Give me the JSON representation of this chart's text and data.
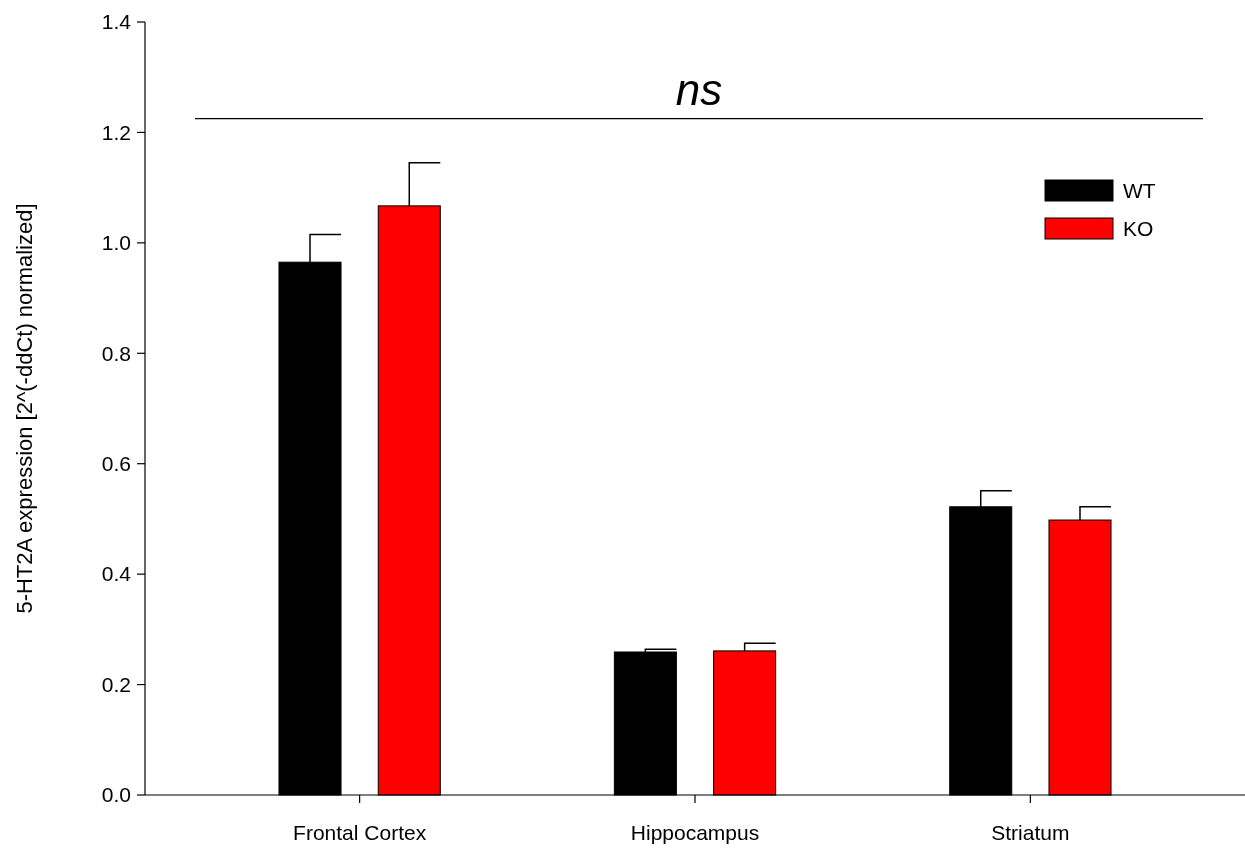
{
  "chart_data": {
    "type": "bar",
    "ylabel": "5-HT2A expression [2^(-ddCt) normalized]",
    "categories": [
      "Frontal Cortex",
      "Hippocampus",
      "Striatum"
    ],
    "series": [
      {
        "name": "WT",
        "color": "#000000",
        "values": [
          0.965,
          0.259,
          0.522
        ],
        "errors": [
          0.05,
          0.005,
          0.029
        ]
      },
      {
        "name": "KO",
        "color": "#ff0000",
        "values": [
          1.067,
          0.261,
          0.498
        ],
        "errors": [
          0.078,
          0.014,
          0.024
        ]
      }
    ],
    "ylim": [
      0,
      1.4
    ],
    "yticks": [
      {
        "value": 0,
        "label": "0.0"
      },
      {
        "value": 0.2,
        "label": "0.2"
      },
      {
        "value": 0.4,
        "label": "0.4"
      },
      {
        "value": 0.6,
        "label": "0.6"
      },
      {
        "value": 0.8,
        "label": "0.8"
      },
      {
        "value": 1,
        "label": "1.0"
      },
      {
        "value": 1.2,
        "label": "1.2"
      },
      {
        "value": 1.4,
        "label": "1.4"
      }
    ],
    "ref_lines": [
      {
        "axis": "y",
        "value": 1.225,
        "label": "ns"
      }
    ],
    "legend": "top right"
  }
}
